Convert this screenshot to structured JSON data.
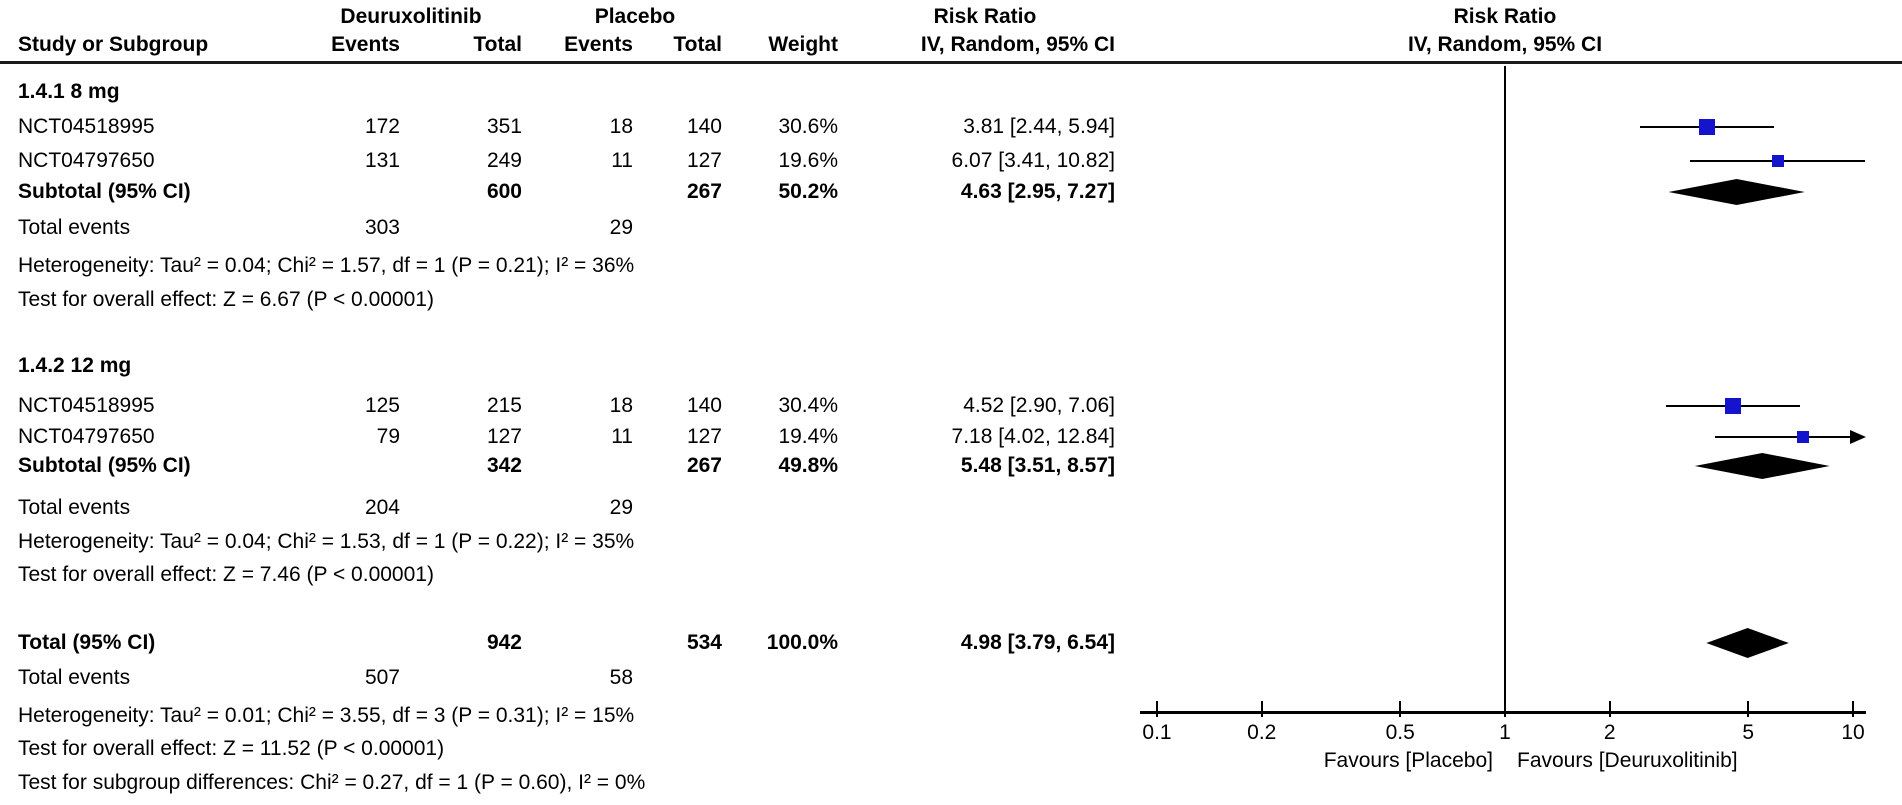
{
  "labels": {
    "group_exp": "Deuruxolitinib",
    "group_ctrl": "Placebo",
    "col_study": "Study or Subgroup",
    "col_events": "Events",
    "col_total": "Total",
    "col_weight": "Weight",
    "col_rr": "Risk Ratio",
    "col_method": "IV, Random, 95% CI",
    "subtotal": "Subtotal (95% CI)",
    "total_ci": "Total (95% CI)",
    "total_events": "Total events"
  },
  "colors": {
    "marker": "#1414cc",
    "diamond": "#000000",
    "line": "#000000"
  },
  "chart_data": {
    "type": "forest",
    "effect_measure": "Risk Ratio",
    "method": "IV, Random, 95% CI",
    "axis": {
      "scale": "log",
      "min": 0.1,
      "max": 10,
      "null_line": 1,
      "ticks": [
        0.1,
        0.2,
        0.5,
        1,
        2,
        5,
        10
      ]
    },
    "favours_left": "Favours [Placebo]",
    "favours_right": "Favours [Deuruxolitinib]",
    "groups": [
      {
        "label": "1.4.1 8 mg",
        "studies": [
          {
            "id": "NCT04518995",
            "et": 172,
            "tt": 351,
            "ec": 18,
            "tc": 140,
            "w": 30.6,
            "wt": "30.6%",
            "rr": 3.81,
            "lo": 2.44,
            "hi": 5.94,
            "ci": "3.81 [2.44, 5.94]"
          },
          {
            "id": "NCT04797650",
            "et": 131,
            "tt": 249,
            "ec": 11,
            "tc": 127,
            "w": 19.6,
            "wt": "19.6%",
            "rr": 6.07,
            "lo": 3.41,
            "hi": 10.82,
            "ci": "6.07 [3.41, 10.82]"
          }
        ],
        "subtotal": {
          "tt": 600,
          "tc": 267,
          "wt": "50.2%",
          "rr": 4.63,
          "lo": 2.95,
          "hi": 7.27,
          "ci": "4.63 [2.95, 7.27]"
        },
        "te": {
          "e": 303,
          "c": 29
        },
        "het": "Heterogeneity: Tau² = 0.04; Chi² = 1.57, df = 1 (P = 0.21); I² = 36%",
        "test": "Test for overall effect: Z = 6.67 (P < 0.00001)"
      },
      {
        "label": "1.4.2 12 mg",
        "studies": [
          {
            "id": "NCT04518995",
            "et": 125,
            "tt": 215,
            "ec": 18,
            "tc": 140,
            "w": 30.4,
            "wt": "30.4%",
            "rr": 4.52,
            "lo": 2.9,
            "hi": 7.06,
            "ci": "4.52 [2.90, 7.06]"
          },
          {
            "id": "NCT04797650",
            "et": 79,
            "tt": 127,
            "ec": 11,
            "tc": 127,
            "w": 19.4,
            "wt": "19.4%",
            "rr": 7.18,
            "lo": 4.02,
            "hi": 12.84,
            "ci": "7.18 [4.02, 12.84]"
          }
        ],
        "subtotal": {
          "tt": 342,
          "tc": 267,
          "wt": "49.8%",
          "rr": 5.48,
          "lo": 3.51,
          "hi": 8.57,
          "ci": "5.48 [3.51, 8.57]"
        },
        "te": {
          "e": 204,
          "c": 29
        },
        "het": "Heterogeneity: Tau² = 0.04; Chi² = 1.53, df = 1 (P = 0.22); I² = 35%",
        "test": "Test for overall effect: Z = 7.46 (P < 0.00001)"
      }
    ],
    "total": {
      "tt": 942,
      "tc": 534,
      "wt": "100.0%",
      "rr": 4.98,
      "lo": 3.79,
      "hi": 6.54,
      "ci": "4.98 [3.79, 6.54]",
      "te": {
        "e": 507,
        "c": 58
      },
      "het": "Heterogeneity: Tau² = 0.01; Chi² = 3.55, df = 3 (P = 0.31); I² = 15%",
      "test": "Test for overall effect: Z = 11.52 (P < 0.00001)",
      "subdiff": "Test for subgroup differences: Chi² = 0.27, df = 1 (P = 0.60), I² = 0%"
    }
  }
}
